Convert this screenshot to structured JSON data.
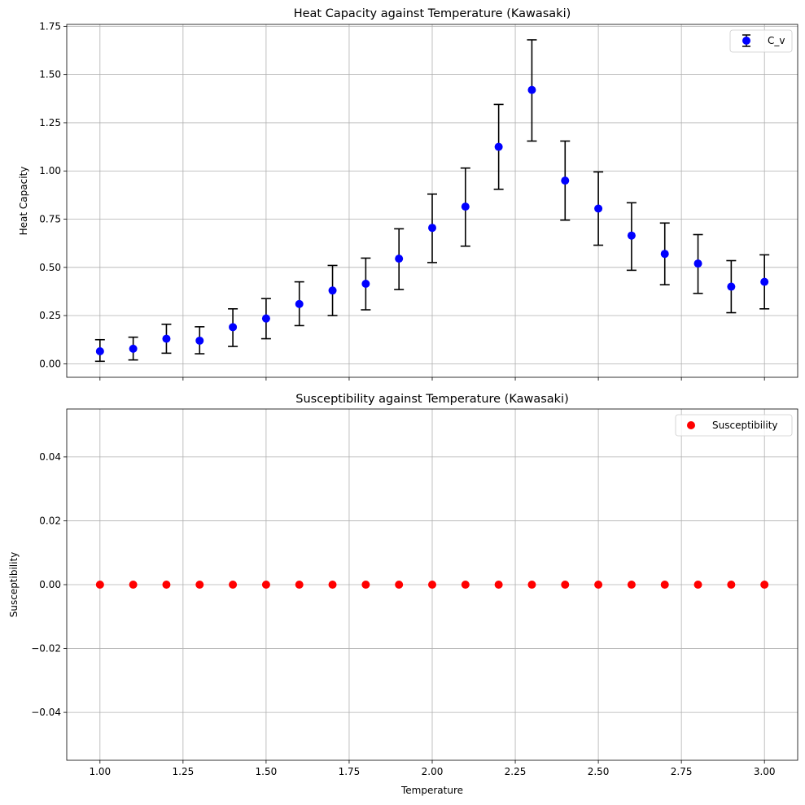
{
  "chart_data": [
    {
      "type": "scatter",
      "variant": "errorbar",
      "title": "Heat Capacity against Temperature (Kawasaki)",
      "xlabel": "",
      "ylabel": "Heat Capacity",
      "xlim": [
        0.9,
        3.1
      ],
      "ylim": [
        -0.07,
        1.76
      ],
      "xticks": [
        1.0,
        1.25,
        1.5,
        1.75,
        2.0,
        2.25,
        2.5,
        2.75,
        3.0
      ],
      "xtick_labels_visible": false,
      "yticks": [
        0.0,
        0.25,
        0.5,
        0.75,
        1.0,
        1.25,
        1.5,
        1.75
      ],
      "ytick_labels": [
        "0.00",
        "0.25",
        "0.50",
        "0.75",
        "1.00",
        "1.25",
        "1.50",
        "1.75"
      ],
      "grid": true,
      "legend_position": "top-right",
      "series": [
        {
          "name": "C_v",
          "marker_color": "#0000ff",
          "errorbar_color": "#000000",
          "x": [
            1.0,
            1.1,
            1.2,
            1.3,
            1.4,
            1.5,
            1.6,
            1.7,
            1.8,
            1.9,
            2.0,
            2.1,
            2.2,
            2.3,
            2.4,
            2.5,
            2.6,
            2.7,
            2.8,
            2.9,
            3.0
          ],
          "y": [
            0.065,
            0.078,
            0.13,
            0.12,
            0.19,
            0.235,
            0.31,
            0.38,
            0.415,
            0.545,
            0.705,
            0.815,
            1.125,
            1.42,
            0.95,
            0.805,
            0.665,
            0.57,
            0.52,
            0.4,
            0.425
          ],
          "yerr_low": [
            0.013,
            0.02,
            0.055,
            0.052,
            0.09,
            0.13,
            0.198,
            0.25,
            0.28,
            0.385,
            0.525,
            0.61,
            0.905,
            1.155,
            0.745,
            0.615,
            0.485,
            0.41,
            0.365,
            0.265,
            0.285
          ],
          "yerr_high": [
            0.125,
            0.138,
            0.205,
            0.192,
            0.285,
            0.338,
            0.425,
            0.51,
            0.548,
            0.7,
            0.88,
            1.015,
            1.345,
            1.68,
            1.155,
            0.995,
            0.835,
            0.73,
            0.67,
            0.535,
            0.565
          ]
        }
      ]
    },
    {
      "type": "scatter",
      "title": "Susceptibility against Temperature (Kawasaki)",
      "xlabel": "Temperature",
      "ylabel": "Susceptibility",
      "xlim": [
        0.9,
        3.1
      ],
      "ylim": [
        -0.055,
        0.055
      ],
      "xticks": [
        1.0,
        1.25,
        1.5,
        1.75,
        2.0,
        2.25,
        2.5,
        2.75,
        3.0
      ],
      "xtick_labels": [
        "1.00",
        "1.25",
        "1.50",
        "1.75",
        "2.00",
        "2.25",
        "2.50",
        "2.75",
        "3.00"
      ],
      "yticks": [
        -0.04,
        -0.02,
        0.0,
        0.02,
        0.04
      ],
      "ytick_labels": [
        "−0.04",
        "−0.02",
        "0.00",
        "0.02",
        "0.04"
      ],
      "grid": true,
      "legend_position": "top-right",
      "series": [
        {
          "name": "Susceptibility",
          "marker_color": "#ff0000",
          "x": [
            1.0,
            1.1,
            1.2,
            1.3,
            1.4,
            1.5,
            1.6,
            1.7,
            1.8,
            1.9,
            2.0,
            2.1,
            2.2,
            2.3,
            2.4,
            2.5,
            2.6,
            2.7,
            2.8,
            2.9,
            3.0
          ],
          "y": [
            0,
            0,
            0,
            0,
            0,
            0,
            0,
            0,
            0,
            0,
            0,
            0,
            0,
            0,
            0,
            0,
            0,
            0,
            0,
            0,
            0
          ]
        }
      ]
    }
  ]
}
